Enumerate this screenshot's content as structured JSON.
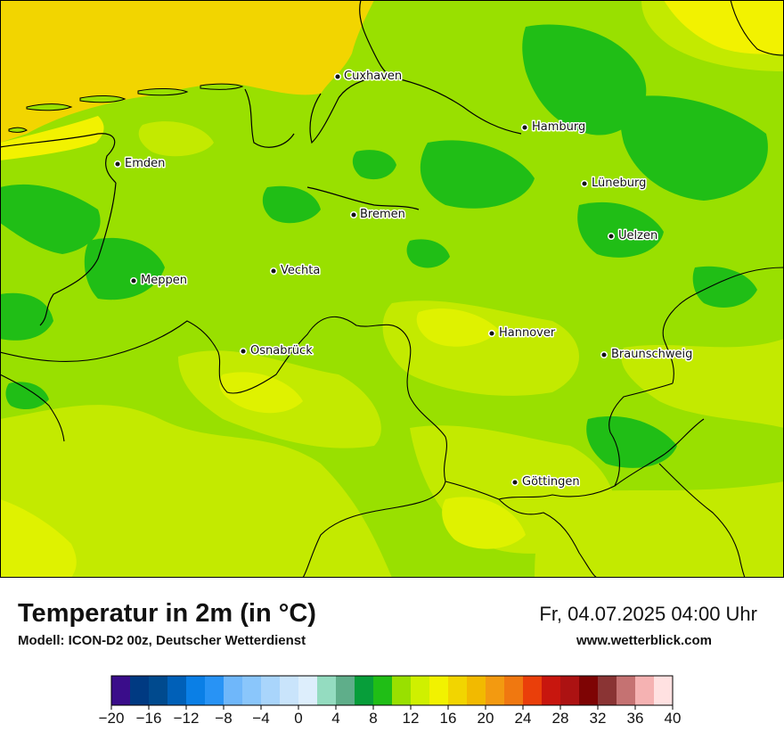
{
  "title": "Temperatur in 2m (in °C)",
  "model_line": "Modell: ICON-D2 00z, Deutscher Wetterdienst",
  "datetime": "Fr, 04.07.2025 04:00 Uhr",
  "website": "www.wetterblick.com",
  "cities": [
    {
      "name": "Cuxhaven"
    },
    {
      "name": "Hamburg"
    },
    {
      "name": "Emden"
    },
    {
      "name": "Lüneburg"
    },
    {
      "name": "Bremen"
    },
    {
      "name": "Uelzen"
    },
    {
      "name": "Vechta"
    },
    {
      "name": "Meppen"
    },
    {
      "name": "Hannover"
    },
    {
      "name": "Osnabrück"
    },
    {
      "name": "Braunschweig"
    },
    {
      "name": "Göttingen"
    }
  ],
  "legend": {
    "ticks": [
      "−20",
      "−16",
      "−12",
      "−8",
      "−4",
      "0",
      "4",
      "8",
      "12",
      "16",
      "20",
      "24",
      "28",
      "32",
      "36",
      "40"
    ],
    "colors": [
      "#3a0d8a",
      "#003a82",
      "#004a8e",
      "#0060b8",
      "#0a7fe6",
      "#2893f5",
      "#6fb7fa",
      "#8ac6fb",
      "#a9d5fb",
      "#c9e4fb",
      "#ddeefc",
      "#94dcc0",
      "#5fae8a",
      "#079e3a",
      "#20be16",
      "#99e000",
      "#cff000",
      "#f2f200",
      "#f2d500",
      "#f2ba00",
      "#f39a10",
      "#f07810",
      "#ea3f0a",
      "#c8160e",
      "#ac1212",
      "#7e0404",
      "#8a3434",
      "#c57272",
      "#f5b2b2",
      "#ffe1e1"
    ]
  }
}
